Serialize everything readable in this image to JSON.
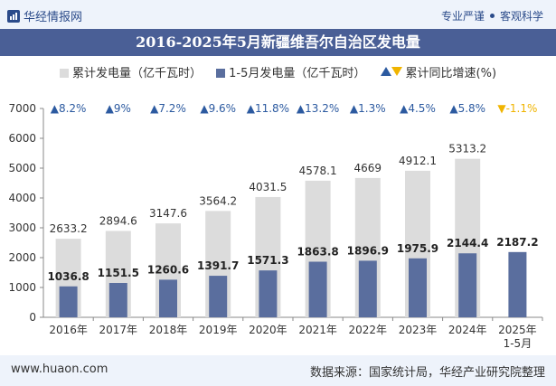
{
  "header": {
    "brand": "华经情报网",
    "tagline_left": "专业严谨",
    "tagline_right": "客观科学"
  },
  "title": "2016-2025年5月新疆维吾尔自治区发电量",
  "legend": {
    "series_annual": "累计发电量（亿千瓦时）",
    "series_period": "1-5月发电量（亿千瓦时）",
    "series_growth": "累计同比增速(%)"
  },
  "footer": {
    "url": "www.huaon.com",
    "source": "数据来源：国家统计局，华经产业研究院整理"
  },
  "colors": {
    "annual_bar": "#dcdcdc",
    "period_bar": "#5a6e9e",
    "growth_up": "#2c5aa0",
    "growth_down": "#f0b400",
    "title_bg": "#4a5f96"
  },
  "chart_data": {
    "type": "bar",
    "categories": [
      "2016年",
      "2017年",
      "2018年",
      "2019年",
      "2020年",
      "2021年",
      "2022年",
      "2023年",
      "2024年",
      "2025年\n1-5月"
    ],
    "series": [
      {
        "name": "累计发电量（亿千瓦时）",
        "values": [
          2633.2,
          2894.6,
          3147.6,
          3564.2,
          4031.5,
          4578.1,
          4669,
          4912.1,
          5313.2,
          null
        ]
      },
      {
        "name": "1-5月发电量（亿千瓦时）",
        "values": [
          1036.8,
          1151.5,
          1260.6,
          1391.7,
          1571.3,
          1863.8,
          1896.9,
          1975.9,
          2144.4,
          2187.2
        ]
      }
    ],
    "growth": {
      "name": "累计同比增速(%)",
      "values": [
        8.2,
        9,
        7.2,
        9.6,
        11.8,
        13.2,
        1.3,
        4.5,
        5.8,
        -1.1
      ]
    },
    "yticks": [
      0,
      1000,
      2000,
      3000,
      4000,
      5000,
      6000,
      7000
    ],
    "ylim": [
      0,
      7000
    ],
    "legend_position": "top"
  }
}
